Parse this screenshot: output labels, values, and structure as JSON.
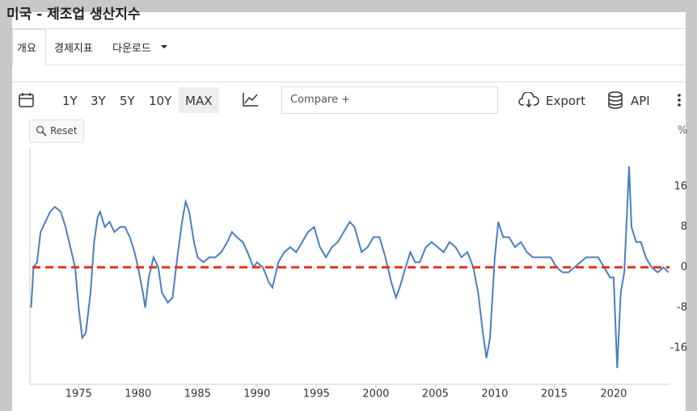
{
  "header": {
    "title": "미국 - 제조업 생산지수"
  },
  "tabs": [
    "개요",
    "경제지표",
    "다운로드"
  ],
  "toolbar": {
    "ranges": [
      "1Y",
      "3Y",
      "5Y",
      "10Y",
      "MAX"
    ],
    "compare_placeholder": "Compare +",
    "export": "Export",
    "api": "API",
    "reset": "Reset"
  },
  "chart_data": {
    "type": "line",
    "unit": "%",
    "color": "#4a7fc1",
    "reference_line": {
      "value": 0,
      "color": "#e0301e"
    },
    "x": [
      1971.0,
      1971.2,
      1971.5,
      1971.8,
      1972.2,
      1972.6,
      1973.0,
      1973.5,
      1973.9,
      1974.3,
      1974.7,
      1975.0,
      1975.3,
      1975.6,
      1976.0,
      1976.3,
      1976.6,
      1976.8,
      1977.2,
      1977.6,
      1978.0,
      1978.5,
      1978.9,
      1979.3,
      1979.7,
      1980.0,
      1980.4,
      1980.6,
      1980.9,
      1981.3,
      1981.7,
      1982.0,
      1982.5,
      1982.9,
      1983.3,
      1983.7,
      1984.0,
      1984.3,
      1984.7,
      1985.0,
      1985.5,
      1986.0,
      1986.5,
      1987.0,
      1987.5,
      1987.9,
      1988.3,
      1988.8,
      1989.2,
      1989.7,
      1990.0,
      1990.5,
      1991.0,
      1991.3,
      1991.8,
      1992.3,
      1992.8,
      1993.3,
      1993.8,
      1994.3,
      1994.8,
      1995.3,
      1995.8,
      1996.3,
      1996.8,
      1997.3,
      1997.8,
      1998.2,
      1998.8,
      1999.3,
      1999.8,
      2000.3,
      2000.8,
      2001.3,
      2001.7,
      2002.0,
      2002.5,
      2002.9,
      2003.3,
      2003.7,
      2004.2,
      2004.7,
      2005.2,
      2005.7,
      2006.2,
      2006.7,
      2007.2,
      2007.7,
      2008.2,
      2008.6,
      2009.0,
      2009.3,
      2009.6,
      2010.0,
      2010.3,
      2010.7,
      2011.2,
      2011.7,
      2012.2,
      2012.7,
      2013.2,
      2013.7,
      2014.2,
      2014.7,
      2015.2,
      2015.7,
      2016.2,
      2016.7,
      2017.2,
      2017.7,
      2018.2,
      2018.7,
      2019.2,
      2019.7,
      2020.0,
      2020.3,
      2020.6,
      2020.9,
      2021.3,
      2021.5,
      2021.9,
      2022.3,
      2022.7,
      2023.2,
      2023.7,
      2024.2,
      2024.6
    ],
    "values": [
      -8,
      0,
      1,
      7,
      9,
      11,
      12,
      11,
      8,
      4,
      0,
      -8,
      -14,
      -13,
      -5,
      5,
      10,
      11,
      8,
      9,
      7,
      8,
      8,
      6,
      3,
      0,
      -5,
      -8,
      -2,
      2,
      0,
      -5,
      -7,
      -6,
      2,
      9,
      13,
      11,
      5,
      2,
      1,
      2,
      2,
      3,
      5,
      7,
      6,
      5,
      3,
      0,
      1,
      0,
      -3,
      -4,
      1,
      3,
      4,
      3,
      5,
      7,
      8,
      4,
      2,
      4,
      5,
      7,
      9,
      8,
      3,
      4,
      6,
      6,
      2,
      -3,
      -6,
      -4,
      0,
      3,
      1,
      1,
      4,
      5,
      4,
      3,
      5,
      4,
      2,
      3,
      0,
      -5,
      -13,
      -18,
      -14,
      2,
      9,
      6,
      6,
      4,
      5,
      3,
      2,
      2,
      2,
      2,
      0,
      -1,
      -1,
      0,
      1,
      2,
      2,
      2,
      0,
      -2,
      -2,
      -20,
      -5,
      -1,
      20,
      8,
      5,
      5,
      2,
      0,
      -1,
      0,
      -1
    ],
    "xlim": [
      1970.9,
      2024.7
    ],
    "ylim": [
      -23.2,
      23.7
    ],
    "xticks": [
      1975,
      1980,
      1985,
      1990,
      1995,
      2000,
      2005,
      2010,
      2015,
      2020
    ],
    "yticks": [
      -16,
      -8,
      0,
      8,
      16
    ],
    "grid": false
  }
}
